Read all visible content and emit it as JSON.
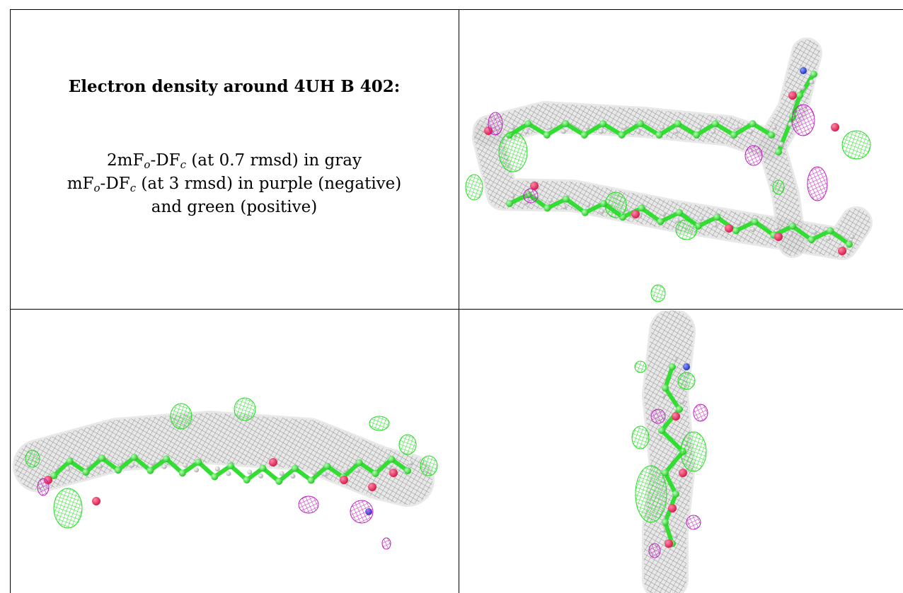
{
  "caption": {
    "title": "Electron density around 4UH B 402:",
    "line1": {
      "pre": "2mF",
      "sub1": "o",
      "mid": "-DF",
      "sub2": "c",
      "post": " (at 0.7 rmsd) in gray"
    },
    "line2": {
      "pre": "mF",
      "sub1": "o",
      "mid": "-DF",
      "sub2": "c",
      "post": " (at 3 rmsd) in purple (negative)"
    },
    "line3": "and green (positive)"
  },
  "views": [
    {
      "name": "view-top-right"
    },
    {
      "name": "view-bottom-left"
    },
    {
      "name": "view-bottom-right"
    }
  ],
  "colors": {
    "mesh_gray": "#9a9a9a",
    "positive_green": "#33ee33",
    "negative_purple": "#cc22cc",
    "carbon_green": "#44e844",
    "oxygen_red": "#e8305a",
    "nitrogen_blue": "#3344cc",
    "hydrogen_white": "#dddddd"
  }
}
